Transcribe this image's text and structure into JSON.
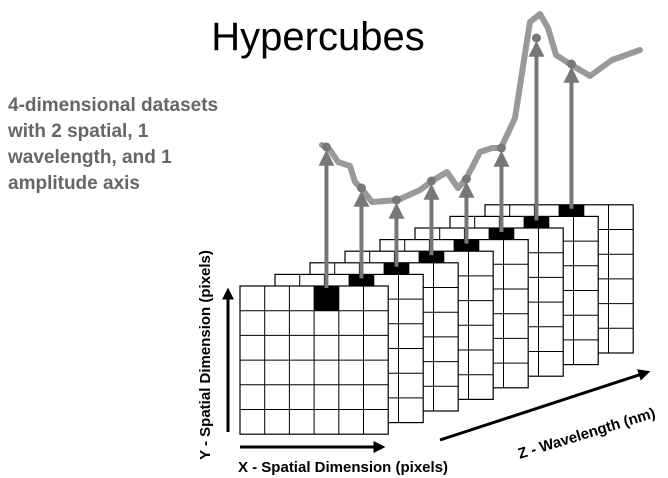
{
  "title": "Hypercubes",
  "description": [
    "4-dimensional datasets",
    "with 2 spatial, 1",
    "wavelength, and 1",
    "amplitude axis"
  ],
  "axes": {
    "x": "X - Spatial Dimension (pixels)",
    "y": "Y - Spatial Dimension (pixels)",
    "z": "Z - Wavelength (nm)"
  }
}
